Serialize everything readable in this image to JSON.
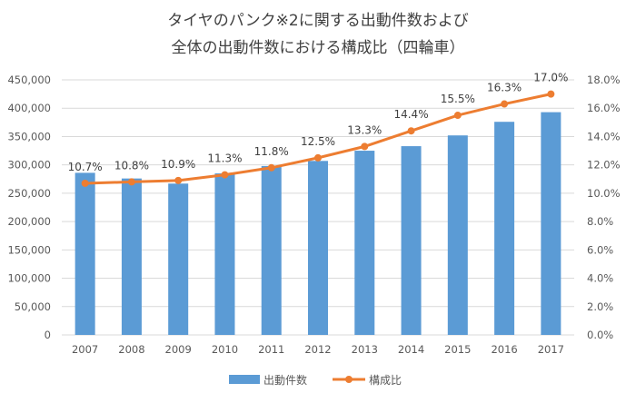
{
  "chart_data": {
    "type": "bar+line",
    "title_line1": "タイヤのパンク※2に関する出動件数および",
    "title_line2": "全体の出動件数における構成比（四輪車）",
    "categories": [
      "2007",
      "2008",
      "2009",
      "2010",
      "2011",
      "2012",
      "2013",
      "2014",
      "2015",
      "2016",
      "2017"
    ],
    "series": [
      {
        "name": "出動件数",
        "type": "bar",
        "axis": "left",
        "color": "#5B9BD5",
        "values": [
          286000,
          276000,
          267000,
          285000,
          298000,
          307000,
          325000,
          333000,
          352000,
          376000,
          393000
        ]
      },
      {
        "name": "構成比",
        "type": "line",
        "axis": "right",
        "color": "#ED7D31",
        "values": [
          10.7,
          10.8,
          10.9,
          11.3,
          11.8,
          12.5,
          13.3,
          14.4,
          15.5,
          16.3,
          17.0
        ],
        "labels": [
          "10.7%",
          "10.8%",
          "10.9%",
          "11.3%",
          "11.8%",
          "12.5%",
          "13.3%",
          "14.4%",
          "15.5%",
          "16.3%",
          "17.0%"
        ]
      }
    ],
    "ylim_left": [
      0,
      450000
    ],
    "yticks_left": [
      "0",
      "50,000",
      "100,000",
      "150,000",
      "200,000",
      "250,000",
      "300,000",
      "350,000",
      "400,000",
      "450,000"
    ],
    "ylim_right": [
      0,
      18
    ],
    "yticks_right": [
      "0.0%",
      "2.0%",
      "4.0%",
      "6.0%",
      "8.0%",
      "10.0%",
      "12.0%",
      "14.0%",
      "16.0%",
      "18.0%"
    ],
    "grid": true,
    "legend": "bottom"
  }
}
